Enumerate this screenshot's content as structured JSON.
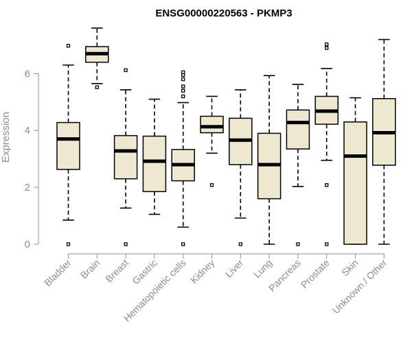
{
  "chart_data": {
    "type": "boxplot",
    "title": "ENSG00000220563 - PKMP3",
    "xlabel": "",
    "ylabel": "Expression",
    "ylim": [
      0,
      7.25
    ],
    "yticks": [
      0,
      2,
      4,
      6
    ],
    "categories": [
      "Bladder",
      "Brain",
      "Breast",
      "Gastric",
      "Hematopoietic cells",
      "Kidney",
      "Liver",
      "Lung",
      "Pancreas",
      "Prostate",
      "Skin",
      "Unknown / Other"
    ],
    "boxes": [
      {
        "category": "Bladder",
        "whisker_low": 0.85,
        "q1": 2.63,
        "median": 3.7,
        "q3": 4.28,
        "whisker_high": 6.3,
        "outliers": [
          0,
          6.98
        ]
      },
      {
        "category": "Brain",
        "whisker_low": 5.65,
        "q1": 6.4,
        "median": 6.7,
        "q3": 6.95,
        "whisker_high": 7.6,
        "outliers": [
          5.52
        ]
      },
      {
        "category": "Breast",
        "whisker_low": 1.27,
        "q1": 2.3,
        "median": 3.28,
        "q3": 3.82,
        "whisker_high": 5.43,
        "outliers": [
          0,
          6.12
        ]
      },
      {
        "category": "Gastric",
        "whisker_low": 1.05,
        "q1": 1.85,
        "median": 2.92,
        "q3": 3.8,
        "whisker_high": 5.1,
        "outliers": []
      },
      {
        "category": "Hematopoietic cells",
        "whisker_low": 0.6,
        "q1": 2.23,
        "median": 2.8,
        "q3": 3.33,
        "whisker_high": 4.98,
        "outliers": [
          0,
          5.2,
          5.4,
          5.55,
          5.8,
          5.95,
          6.05
        ]
      },
      {
        "category": "Kidney",
        "whisker_low": 3.2,
        "q1": 3.92,
        "median": 4.13,
        "q3": 4.5,
        "whisker_high": 5.2,
        "outliers": [
          2.08
        ]
      },
      {
        "category": "Liver",
        "whisker_low": 0.92,
        "q1": 2.8,
        "median": 3.66,
        "q3": 4.43,
        "whisker_high": 5.43,
        "outliers": [
          0
        ]
      },
      {
        "category": "Lung",
        "whisker_low": 0,
        "q1": 1.6,
        "median": 2.8,
        "q3": 3.9,
        "whisker_high": 5.93,
        "outliers": []
      },
      {
        "category": "Pancreas",
        "whisker_low": 2.03,
        "q1": 3.35,
        "median": 4.28,
        "q3": 4.72,
        "whisker_high": 5.62,
        "outliers": [
          0
        ]
      },
      {
        "category": "Prostate",
        "whisker_low": 2.95,
        "q1": 4.22,
        "median": 4.68,
        "q3": 5.2,
        "whisker_high": 6.18,
        "outliers": [
          0,
          2.08,
          6.9,
          7.03
        ]
      },
      {
        "category": "Skin",
        "whisker_low": 0,
        "q1": 0,
        "median": 3.1,
        "q3": 4.3,
        "whisker_high": 5.15,
        "outliers": []
      },
      {
        "category": "Unknown / Other",
        "whisker_low": 0,
        "q1": 2.78,
        "median": 3.92,
        "q3": 5.12,
        "whisker_high": 7.2,
        "outliers": []
      }
    ],
    "colors": {
      "box_fill": "#eee8d0",
      "stroke": "#000000",
      "axis": "#8c8c8c"
    }
  }
}
